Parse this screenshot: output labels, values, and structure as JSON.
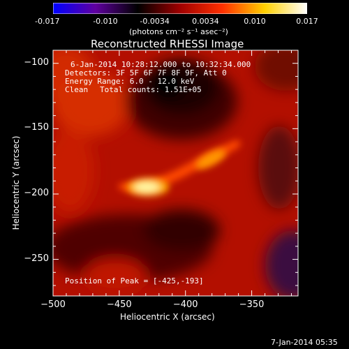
{
  "colorbar": {
    "ticks": [
      "-0.017",
      "-0.010",
      "-0.0034",
      "0.0034",
      "0.010",
      "0.017"
    ],
    "range": [
      -0.017,
      0.017
    ],
    "units": "(photons cm⁻² s⁻¹ asec⁻²)",
    "colors": [
      "#0000ff",
      "#6000a0",
      "#000000",
      "#a00000",
      "#ff3000",
      "#ffd000",
      "#ffffff"
    ]
  },
  "overlay": {
    "time_range": "6-Jan-2014 10:28:12.000 to 10:32:34.000",
    "detectors": "Detectors: 3F 5F 6F 7F 8F 9F, Att 0",
    "energy": "Energy Range: 6.0 - 12.0 keV",
    "method": "Clean",
    "counts": "Total counts: 1.51E+05",
    "peak": "Position of Peak = [-425,-193]"
  },
  "footer": {
    "date": "7-Jan-2014 05:35"
  },
  "chart_data": {
    "type": "heatmap",
    "title": "Reconstructed RHESSI Image",
    "xlabel": "Heliocentric X (arcsec)",
    "ylabel": "Heliocentric Y (arcsec)",
    "xlim": [
      -500,
      -315
    ],
    "ylim": [
      -278,
      -90
    ],
    "xticks": [
      -500,
      -450,
      -400,
      -350
    ],
    "yticks": [
      -100,
      -150,
      -200,
      -250
    ],
    "peak": [
      -425,
      -193
    ]
  }
}
